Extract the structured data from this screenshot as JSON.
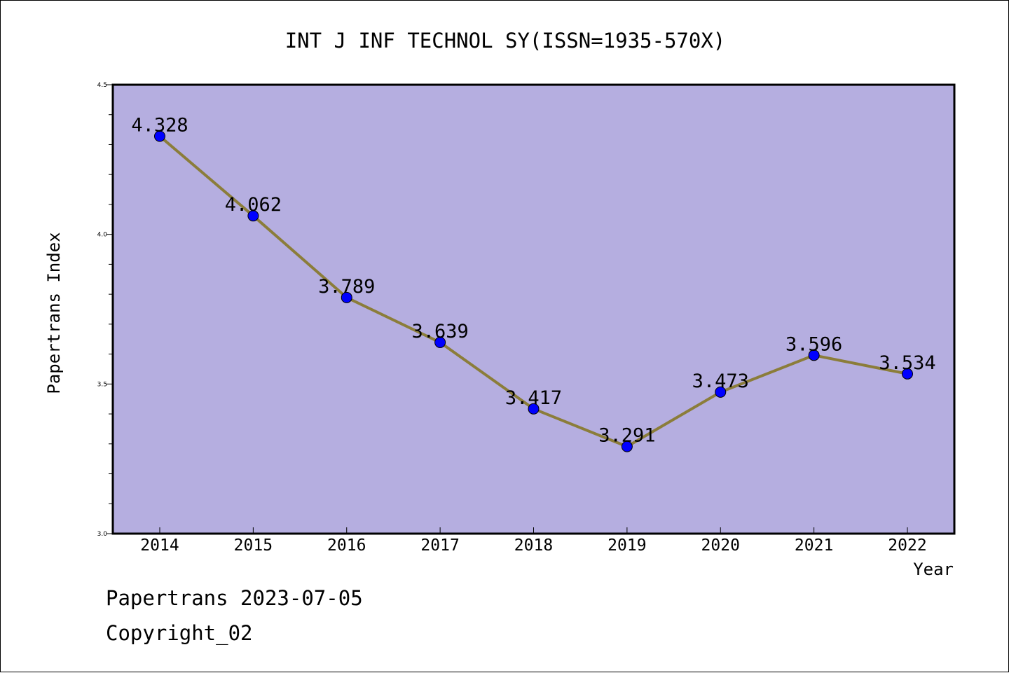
{
  "chart_data": {
    "type": "line",
    "title": "INT J INF TECHNOL SY(ISSN=1935-570X)",
    "xlabel": "Year",
    "ylabel": "Papertrans Index",
    "categories": [
      "2014",
      "2015",
      "2016",
      "2017",
      "2018",
      "2019",
      "2020",
      "2021",
      "2022"
    ],
    "series": [
      {
        "values": [
          4.328,
          4.062,
          3.789,
          3.639,
          3.417,
          3.291,
          3.473,
          3.596,
          3.534
        ],
        "labels": [
          "4.328",
          "4.062",
          "3.789",
          "3.639",
          "3.417",
          "3.291",
          "3.473",
          "3.596",
          "3.534"
        ],
        "line_color": "#8b7d3a",
        "marker_color": "#0000ff"
      }
    ],
    "ylim": [
      3.0,
      4.5
    ],
    "yticks": [
      "3.0",
      "3.5",
      "4.0",
      "4.5"
    ],
    "y_minor_step": 0.1,
    "plot_background": "#b5aee0",
    "grid": false,
    "legend": "none"
  },
  "footer": {
    "line1": "Papertrans 2023-07-05",
    "line2": "Copyright_02"
  }
}
